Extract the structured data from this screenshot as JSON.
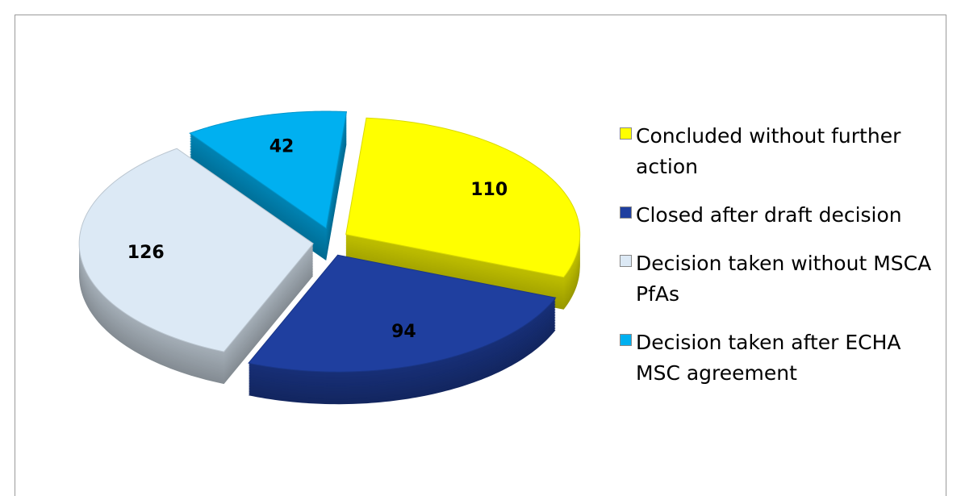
{
  "chart_data": {
    "type": "pie",
    "categories": [
      "Concluded without further action",
      "Closed after draft decision",
      "Decision taken without MSCA PfAs",
      "Decision taken after ECHA MSC agreement"
    ],
    "values": [
      110,
      94,
      126,
      42
    ],
    "colors": [
      "#ffff00",
      "#1f3f9f",
      "#dce9f5",
      "#00b0f0"
    ],
    "legend": "right"
  }
}
